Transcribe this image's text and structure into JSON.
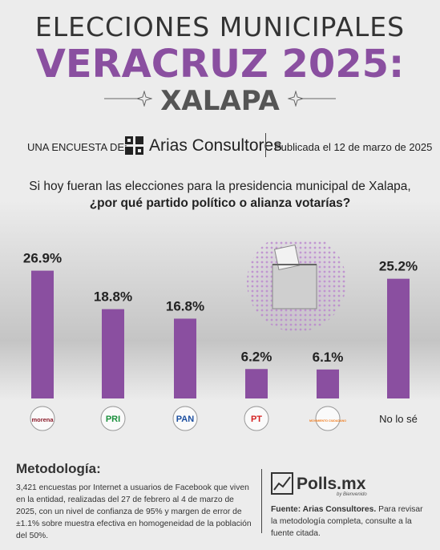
{
  "header": {
    "line1": "ELECCIONES MUNICIPALES",
    "line2": "VERACRUZ 2025:",
    "line3": "XALAPA"
  },
  "pollster": {
    "intro": "UNA ENCUESTA DE:",
    "name": "Arias Consultores",
    "published": "Publicada el 12 de marzo de 2025"
  },
  "question": {
    "line1": "Si hoy fueran las elecciones para la presidencia municipal de Xalapa,",
    "line2": "¿por qué partido político o alianza votarías?"
  },
  "chart_data": {
    "type": "bar",
    "categories": [
      "morena",
      "PRI",
      "PAN",
      "PT",
      "MC",
      "No lo sé"
    ],
    "values": [
      26.9,
      18.8,
      16.8,
      6.2,
      6.1,
      25.2
    ],
    "data_labels": [
      "26.9%",
      "18.8%",
      "16.8%",
      "6.2%",
      "6.1%",
      "25.2%"
    ],
    "ylim": [
      0,
      27
    ],
    "grid": false,
    "bar_color": "#8a4fa0"
  },
  "party_logos": [
    {
      "name": "morena",
      "text": "morena",
      "color": "#8b1c2b"
    },
    {
      "name": "pri",
      "text": "PRI",
      "color": "#1a8f3c"
    },
    {
      "name": "pan",
      "text": "PAN",
      "color": "#1c4fa0"
    },
    {
      "name": "pt",
      "text": "PT",
      "color": "#d32020"
    },
    {
      "name": "mc",
      "text": "MOVIMIENTO CIUDADANO",
      "color": "#f07a1a"
    },
    {
      "name": "no-lo-se",
      "text": "No lo sé"
    }
  ],
  "methodology": {
    "title": "Metodología:",
    "text": "3,421 encuestas por Internet a usuarios de Facebook que viven en la entidad, realizadas del 27 de febrero al 4 de marzo de 2025, con un nivel de confianza de 95% y margen de error de ±1.1% sobre muestra efectiva en homogeneidad de la población del 50%."
  },
  "footer": {
    "brand": "Polls.mx",
    "tagline": "by Bienvenido",
    "source_label": "Fuente: Arias Consultores.",
    "source_text": " Para revisar la metodología completa, consulte a la fuente citada."
  },
  "colors": {
    "accent": "#8a4fa0",
    "dark": "#333333"
  }
}
